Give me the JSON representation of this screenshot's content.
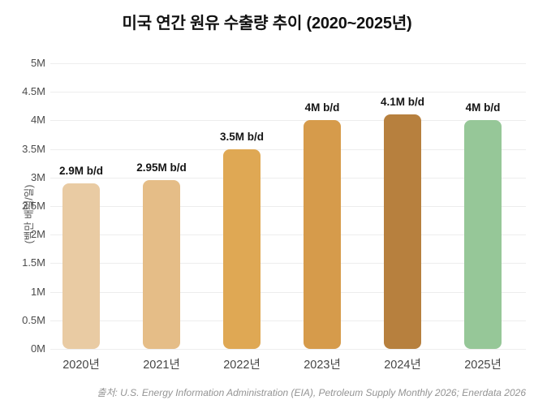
{
  "title": "미국 연간 원유 수출량 추이 (2020~2025년)",
  "footer": "출처: U.S. Energy Information Administration (EIA), Petroleum Supply Monthly 2026; Enerdata 2026",
  "chart_data": {
    "type": "bar",
    "title": "미국 연간 원유 수출량 추이 (2020~2025년)",
    "categories": [
      "2020년",
      "2021년",
      "2022년",
      "2023년",
      "2024년",
      "2025년"
    ],
    "values": [
      2.9,
      2.95,
      3.5,
      4.0,
      4.1,
      4.0
    ],
    "value_labels": [
      "2.9M b/d",
      "2.95M b/d",
      "3.5M b/d",
      "4M b/d",
      "4.1M b/d",
      "4M b/d"
    ],
    "bar_colors": [
      "#e9cba3",
      "#e5bd87",
      "#dfa854",
      "#d69b4b",
      "#b7803e",
      "#96c798"
    ],
    "xlabel": "",
    "ylabel": "(백만 배럴/일)",
    "ylim": [
      0,
      5
    ],
    "ytick_step": 0.5,
    "ytick_labels": [
      "0M",
      "0.5M",
      "1M",
      "1.5M",
      "2M",
      "2.5M",
      "3M",
      "3.5M",
      "4M",
      "4.5M",
      "5M"
    ],
    "grid": true,
    "legend": "none",
    "unit": "M b/d"
  },
  "colors": {
    "grid": "#ededed",
    "tick_text": "#4c4c4c",
    "axis_label_text": "#555555",
    "value_label_text": "#141414",
    "title_text": "#111111",
    "footer_text": "#949494",
    "background": "#ffffff"
  }
}
